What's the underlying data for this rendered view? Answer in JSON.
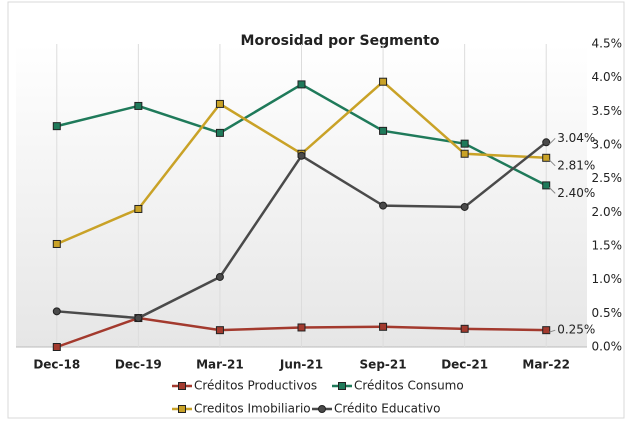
{
  "chart_data": {
    "type": "line",
    "title": "Morosidad por Segmento",
    "categories": [
      "Dec-18",
      "Dec-19",
      "Mar-21",
      "Jun-21",
      "Sep-21",
      "Dec-21",
      "Mar-22"
    ],
    "series": [
      {
        "name": "Créditos Productivos",
        "color": "#a33a2e",
        "marker": "square",
        "values": [
          0.0,
          0.43,
          0.25,
          0.29,
          0.3,
          0.27,
          0.25
        ],
        "value_labels": [
          null,
          null,
          null,
          null,
          null,
          null,
          "0.25%"
        ]
      },
      {
        "name": "Créditos Consumo",
        "color": "#1f7a5a",
        "marker": "square",
        "values": [
          3.28,
          3.58,
          3.18,
          3.9,
          3.21,
          3.02,
          2.4
        ],
        "value_labels": [
          null,
          null,
          null,
          null,
          null,
          null,
          "2.40%"
        ]
      },
      {
        "name": "Creditos Imobiliario",
        "color": "#c9a227",
        "marker": "square",
        "values": [
          1.53,
          2.05,
          3.61,
          2.87,
          3.94,
          2.87,
          2.81
        ],
        "value_labels": [
          null,
          null,
          null,
          null,
          null,
          null,
          "2.81%"
        ]
      },
      {
        "name": "Crédito Educativo",
        "color": "#4a4a4a",
        "marker": "circle",
        "values": [
          0.53,
          0.43,
          1.04,
          2.84,
          2.1,
          2.08,
          3.04
        ],
        "value_labels": [
          null,
          null,
          null,
          null,
          null,
          null,
          "3.04%"
        ]
      }
    ],
    "ylim": [
      0,
      4.5
    ],
    "yticks": [
      {
        "value": 0,
        "label": "0.0%"
      },
      {
        "value": 0.5,
        "label": "0.5%"
      },
      {
        "value": 1,
        "label": "1.0%"
      },
      {
        "value": 1.5,
        "label": "1.5%"
      },
      {
        "value": 2,
        "label": "2.0%"
      },
      {
        "value": 2.5,
        "label": "2.5%"
      },
      {
        "value": 3,
        "label": "3.0%"
      },
      {
        "value": 3.5,
        "label": "3.5%"
      },
      {
        "value": 4,
        "label": "4.0%"
      },
      {
        "value": 4.5,
        "label": "4.5%"
      }
    ],
    "grid": true,
    "legend": "bottom"
  }
}
